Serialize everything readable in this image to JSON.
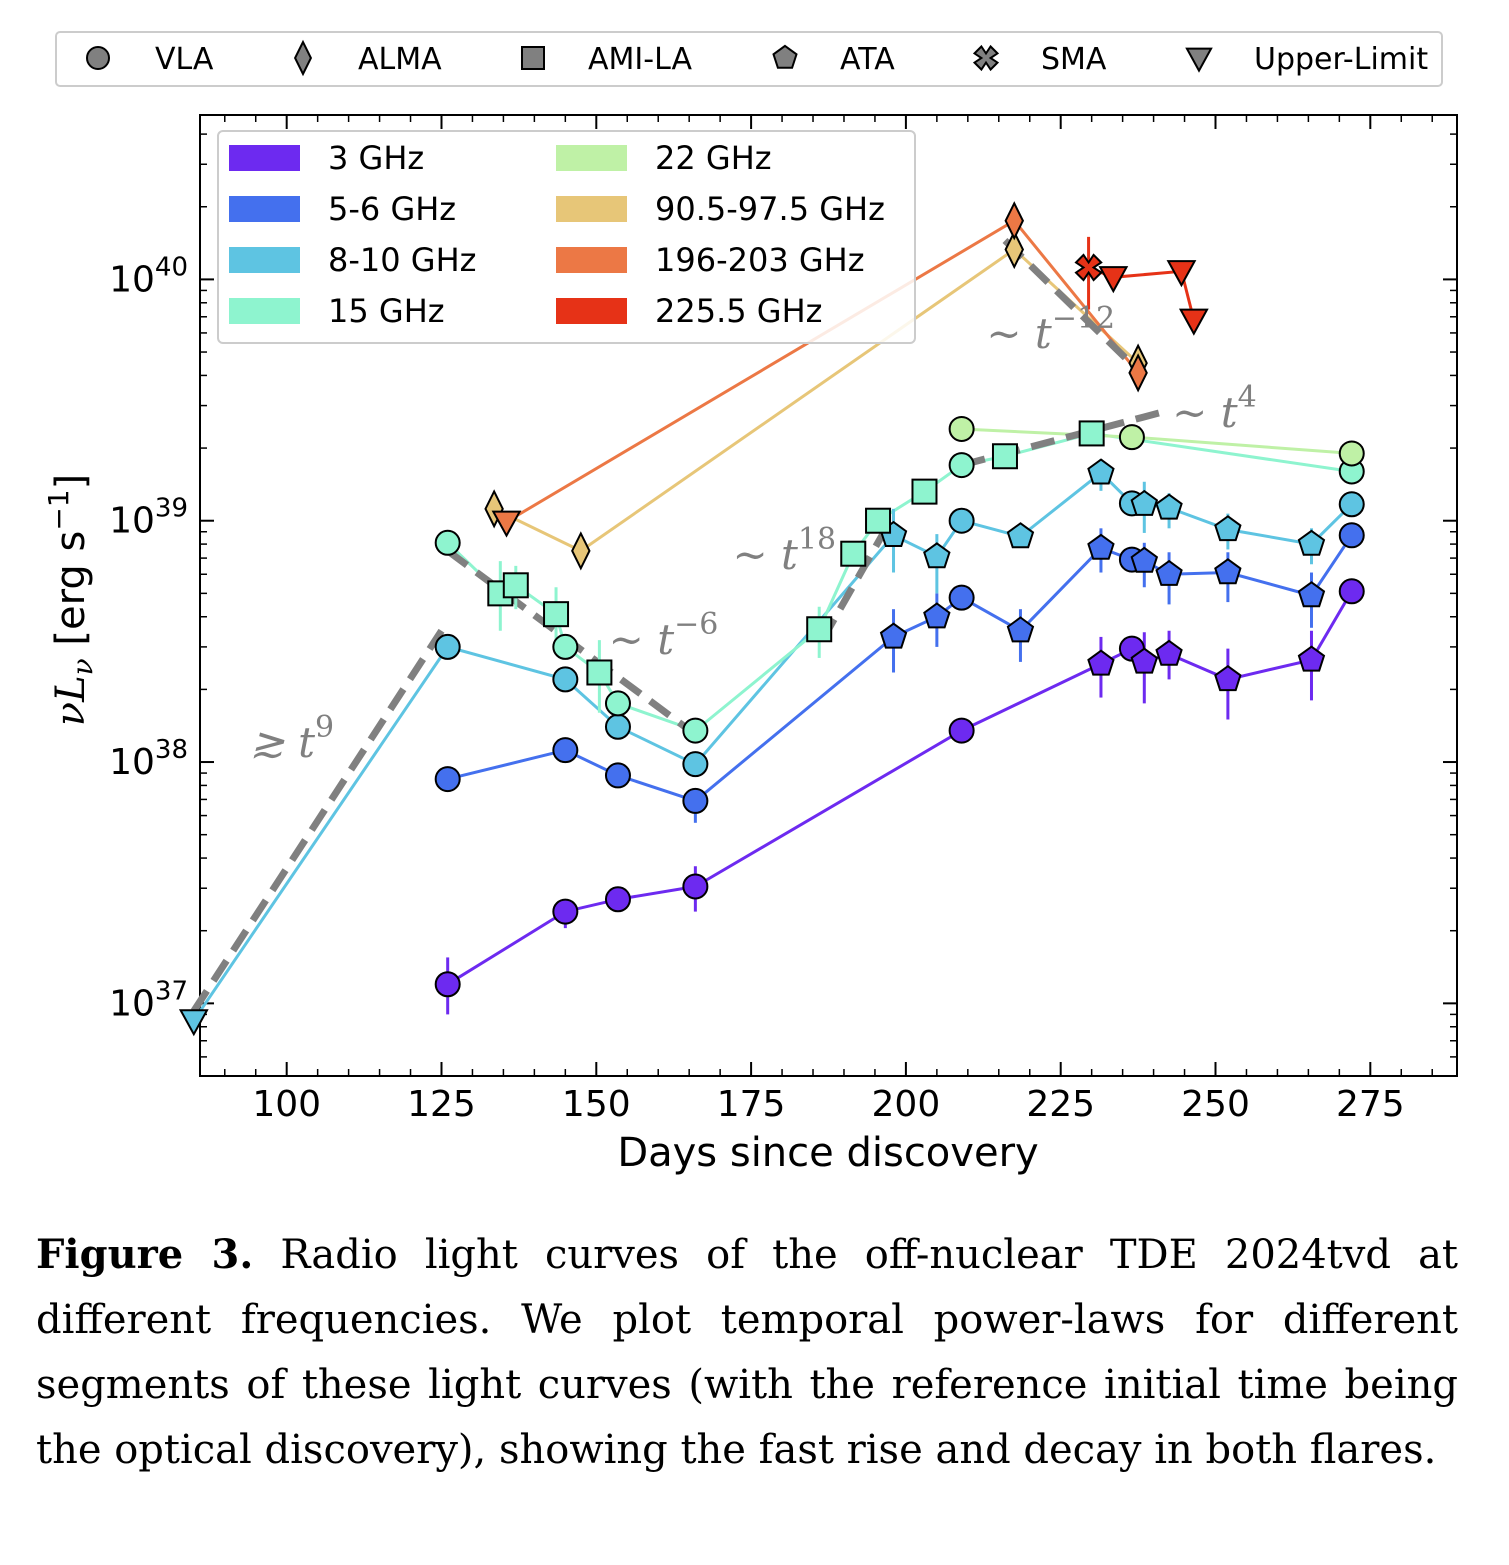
{
  "figure_label": "Figure 3.",
  "caption_text": "Radio light curves of the off-nuclear TDE 2024tvd at different frequencies. We plot temporal power-laws for different segments of these light curves (with the reference initial time being the optical discovery), showing the fast rise and decay in both flares.",
  "colors": {
    "3 GHz": "#6d2af0",
    "5-6 GHz": "#4470ee",
    "8-10 GHz": "#5ec4e2",
    "15 GHz": "#8ef4cf",
    "22 GHz": "#bff1a6",
    "90.5-97.5 GHz": "#e7c678",
    "196-203 GHz": "#ec7845",
    "225.5 GHz": "#e63217",
    "powerlaw": "#808080"
  },
  "chart_data": {
    "type": "scatter",
    "xlabel": "Days since discovery",
    "ylabel": "νLν [erg s⁻¹]",
    "xlim": [
      86,
      289
    ],
    "ylim": [
      5e+36,
      4.8e+40
    ],
    "yscale": "log",
    "xticks": [
      100,
      125,
      150,
      175,
      200,
      225,
      250,
      275
    ],
    "yticks": [
      {
        "value": 1e+37,
        "base": "10",
        "exp": "37"
      },
      {
        "value": 1e+38,
        "base": "10",
        "exp": "38"
      },
      {
        "value": 1e+39,
        "base": "10",
        "exp": "39"
      },
      {
        "value": 1e+40,
        "base": "10",
        "exp": "40"
      }
    ],
    "marker_legend": [
      {
        "label": "VLA",
        "marker": "circle"
      },
      {
        "label": "ALMA",
        "marker": "diamond"
      },
      {
        "label": "AMI-LA",
        "marker": "square"
      },
      {
        "label": "ATA",
        "marker": "pentagon"
      },
      {
        "label": "SMA",
        "marker": "x"
      },
      {
        "label": "Upper-Limit",
        "marker": "triangle"
      }
    ],
    "series": [
      {
        "name": "3 GHz",
        "points": [
          {
            "x": 126,
            "y": 1.2e+37,
            "m": "circle",
            "err": [
              9e+36,
              1.55e+37
            ]
          },
          {
            "x": 145,
            "y": 2.4e+37,
            "m": "circle",
            "err": [
              2.05e+37,
              2.6e+37
            ]
          },
          {
            "x": 153.5,
            "y": 2.7e+37,
            "m": "circle"
          },
          {
            "x": 166,
            "y": 3.05e+37,
            "m": "circle",
            "err": [
              2.4e+37,
              3.7e+37
            ]
          },
          {
            "x": 209,
            "y": 1.35e+38,
            "m": "circle"
          },
          {
            "x": 231.5,
            "y": 2.55e+38,
            "m": "pentagon",
            "err": [
              1.85e+38,
              3.3e+38
            ]
          },
          {
            "x": 236.5,
            "y": 2.95e+38,
            "m": "circle"
          },
          {
            "x": 238.5,
            "y": 2.6e+38,
            "m": "pentagon",
            "err": [
              1.75e+38,
              3.45e+38
            ]
          },
          {
            "x": 242.5,
            "y": 2.8e+38,
            "m": "pentagon",
            "err": [
              2.2e+38,
              3.5e+38
            ]
          },
          {
            "x": 252,
            "y": 2.2e+38,
            "m": "pentagon",
            "err": [
              1.5e+38,
              2.95e+38
            ]
          },
          {
            "x": 265.5,
            "y": 2.65e+38,
            "m": "pentagon",
            "err": [
              1.8e+38,
              3.5e+38
            ]
          },
          {
            "x": 272,
            "y": 5.1e+38,
            "m": "circle"
          }
        ]
      },
      {
        "name": "5-6 GHz",
        "points": [
          {
            "x": 126,
            "y": 8.5e+37,
            "m": "circle"
          },
          {
            "x": 145,
            "y": 1.12e+38,
            "m": "circle"
          },
          {
            "x": 153.5,
            "y": 8.8e+37,
            "m": "circle"
          },
          {
            "x": 166,
            "y": 6.9e+37,
            "m": "circle",
            "err": [
              5.6e+37,
              7.8e+37
            ]
          },
          {
            "x": 198,
            "y": 3.3e+38,
            "m": "pentagon",
            "err": [
              2.35e+38,
              4.3e+38
            ]
          },
          {
            "x": 205,
            "y": 4e+38,
            "m": "pentagon",
            "err": [
              3e+38,
              5e+38
            ]
          },
          {
            "x": 209,
            "y": 4.8e+38,
            "m": "circle"
          },
          {
            "x": 218.5,
            "y": 3.5e+38,
            "m": "pentagon",
            "err": [
              2.6e+38,
              4.3e+38
            ]
          },
          {
            "x": 231.5,
            "y": 7.7e+38,
            "m": "pentagon",
            "err": [
              6.1e+38,
              9.3e+38
            ]
          },
          {
            "x": 236.5,
            "y": 6.9e+38,
            "m": "circle"
          },
          {
            "x": 238.5,
            "y": 6.8e+38,
            "m": "pentagon",
            "err": [
              5.3e+38,
              8.1e+38
            ]
          },
          {
            "x": 242.5,
            "y": 6e+38,
            "m": "pentagon",
            "err": [
              4.5e+38,
              7.4e+38
            ]
          },
          {
            "x": 252,
            "y": 6.1e+38,
            "m": "pentagon",
            "err": [
              4.6e+38,
              7.4e+38
            ]
          },
          {
            "x": 265.5,
            "y": 4.9e+38,
            "m": "pentagon",
            "err": [
              3.6e+38,
              6.1e+38
            ]
          },
          {
            "x": 272,
            "y": 8.7e+38,
            "m": "circle"
          }
        ]
      },
      {
        "name": "8-10 GHz",
        "points": [
          {
            "x": 85,
            "y": 8.5e+36,
            "m": "triangle"
          },
          {
            "x": 126,
            "y": 3e+38,
            "m": "circle"
          },
          {
            "x": 145,
            "y": 2.2e+38,
            "m": "circle"
          },
          {
            "x": 153.5,
            "y": 1.4e+38,
            "m": "circle"
          },
          {
            "x": 166,
            "y": 9.8e+37,
            "m": "circle"
          },
          {
            "x": 198,
            "y": 8.7e+38,
            "m": "pentagon",
            "err": [
              6.1e+38,
              1.12e+39
            ]
          },
          {
            "x": 205,
            "y": 7.1e+38,
            "m": "pentagon",
            "err": [
              5e+38,
              8.8e+38
            ]
          },
          {
            "x": 209,
            "y": 1e+39,
            "m": "circle"
          },
          {
            "x": 218.5,
            "y": 8.6e+38,
            "m": "pentagon"
          },
          {
            "x": 231.5,
            "y": 1.58e+39,
            "m": "pentagon",
            "err": [
              1.33e+39,
              1.8e+39
            ]
          },
          {
            "x": 236.5,
            "y": 1.18e+39,
            "m": "circle"
          },
          {
            "x": 238.5,
            "y": 1.17e+39,
            "m": "pentagon",
            "err": [
              8.9e+38,
              1.45e+39
            ]
          },
          {
            "x": 242.5,
            "y": 1.13e+39,
            "m": "pentagon",
            "err": [
              9.3e+38,
              1.3e+39
            ]
          },
          {
            "x": 252,
            "y": 9.2e+38,
            "m": "pentagon",
            "err": [
              7.6e+38,
              1.07e+39
            ]
          },
          {
            "x": 265.5,
            "y": 8e+38,
            "m": "pentagon",
            "err": [
              6.6e+38,
              9.3e+38
            ]
          },
          {
            "x": 272,
            "y": 1.17e+39,
            "m": "circle"
          }
        ]
      },
      {
        "name": "15 GHz",
        "points": [
          {
            "x": 126,
            "y": 8.1e+38,
            "m": "circle"
          },
          {
            "x": 134.5,
            "y": 5e+38,
            "m": "square",
            "err": [
              3.5e+38,
              6.8e+38
            ]
          },
          {
            "x": 137,
            "y": 5.4e+38,
            "m": "square",
            "err": [
              4.3e+38,
              6.5e+38
            ]
          },
          {
            "x": 143.5,
            "y": 4.1e+38,
            "m": "square",
            "err": [
              3e+38,
              5.3e+38
            ]
          },
          {
            "x": 145,
            "y": 3e+38,
            "m": "circle"
          },
          {
            "x": 150.5,
            "y": 2.35e+38,
            "m": "square",
            "err": [
              1.6e+38,
              3.2e+38
            ]
          },
          {
            "x": 153.5,
            "y": 1.75e+38,
            "m": "circle"
          },
          {
            "x": 166,
            "y": 1.35e+38,
            "m": "circle"
          },
          {
            "x": 186,
            "y": 3.55e+38,
            "m": "square",
            "err": [
              2.7e+38,
              4.4e+38
            ]
          },
          {
            "x": 191.5,
            "y": 7.3e+38,
            "m": "square"
          },
          {
            "x": 195.5,
            "y": 1e+39,
            "m": "square"
          },
          {
            "x": 203,
            "y": 1.32e+39,
            "m": "square"
          },
          {
            "x": 209,
            "y": 1.7e+39,
            "m": "circle"
          },
          {
            "x": 216,
            "y": 1.85e+39,
            "m": "square"
          },
          {
            "x": 230,
            "y": 2.3e+39,
            "m": "square"
          },
          {
            "x": 272,
            "y": 1.6e+39,
            "m": "circle"
          }
        ]
      },
      {
        "name": "22 GHz",
        "points": [
          {
            "x": 209,
            "y": 2.4e+39,
            "m": "circle"
          },
          {
            "x": 236.5,
            "y": 2.22e+39,
            "m": "circle"
          },
          {
            "x": 272,
            "y": 1.9e+39,
            "m": "circle"
          }
        ]
      },
      {
        "name": "90.5-97.5 GHz",
        "points": [
          {
            "x": 133.5,
            "y": 1.12e+39,
            "m": "diamond"
          },
          {
            "x": 147.5,
            "y": 7.5e+38,
            "m": "diamond"
          },
          {
            "x": 217.5,
            "y": 1.33e+40,
            "m": "diamond"
          },
          {
            "x": 237.5,
            "y": 4.5e+39,
            "m": "diamond"
          }
        ]
      },
      {
        "name": "196-203 GHz",
        "points": [
          {
            "x": 135.5,
            "y": 9.9e+38,
            "m": "triangle"
          },
          {
            "x": 217.5,
            "y": 1.75e+40,
            "m": "diamond"
          },
          {
            "x": 237.5,
            "y": 4.1e+39,
            "m": "diamond"
          }
        ]
      },
      {
        "name": "225.5 GHz",
        "points": [
          {
            "x": 229.5,
            "y": 1.12e+40,
            "m": "x",
            "err": [
              7.5e+39,
              1.5e+40
            ]
          },
          {
            "x": 233.5,
            "y": 1.02e+40,
            "m": "triangle"
          },
          {
            "x": 244.5,
            "y": 1.08e+40,
            "m": "triangle"
          },
          {
            "x": 246.5,
            "y": 6.8e+39,
            "m": "triangle"
          }
        ]
      }
    ],
    "powerlaws": [
      {
        "label": "≳ t",
        "exp": "9",
        "x_from": 85,
        "x_to": 125,
        "y_from": 9.3e+36,
        "y_to": 3.5e+38,
        "label_x": 94,
        "label_y": 1.05e+38
      },
      {
        "label": "~ t",
        "exp": "−6",
        "x_from": 126,
        "x_to": 166,
        "y_from": 7.5e+38,
        "y_to": 1.3e+38,
        "label_x": 152,
        "label_y": 2.8e+38
      },
      {
        "label": "~ t",
        "exp": "18",
        "x_from": 186.5,
        "x_to": 197.5,
        "y_from": 3.2e+38,
        "y_to": 1e+39,
        "label_x": 172,
        "label_y": 6.3e+38
      },
      {
        "label": "~ t",
        "exp": "4",
        "x_from": 209,
        "x_to": 241,
        "y_from": 1.7e+39,
        "y_to": 2.8e+39,
        "label_x": 243,
        "label_y": 2.45e+39
      },
      {
        "label": "~ t",
        "exp": "−12",
        "x_from": 216,
        "x_to": 237.5,
        "y_from": 1.45e+40,
        "y_to": 4.2e+39,
        "label_x": 213,
        "label_y": 5.2e+39
      }
    ]
  }
}
